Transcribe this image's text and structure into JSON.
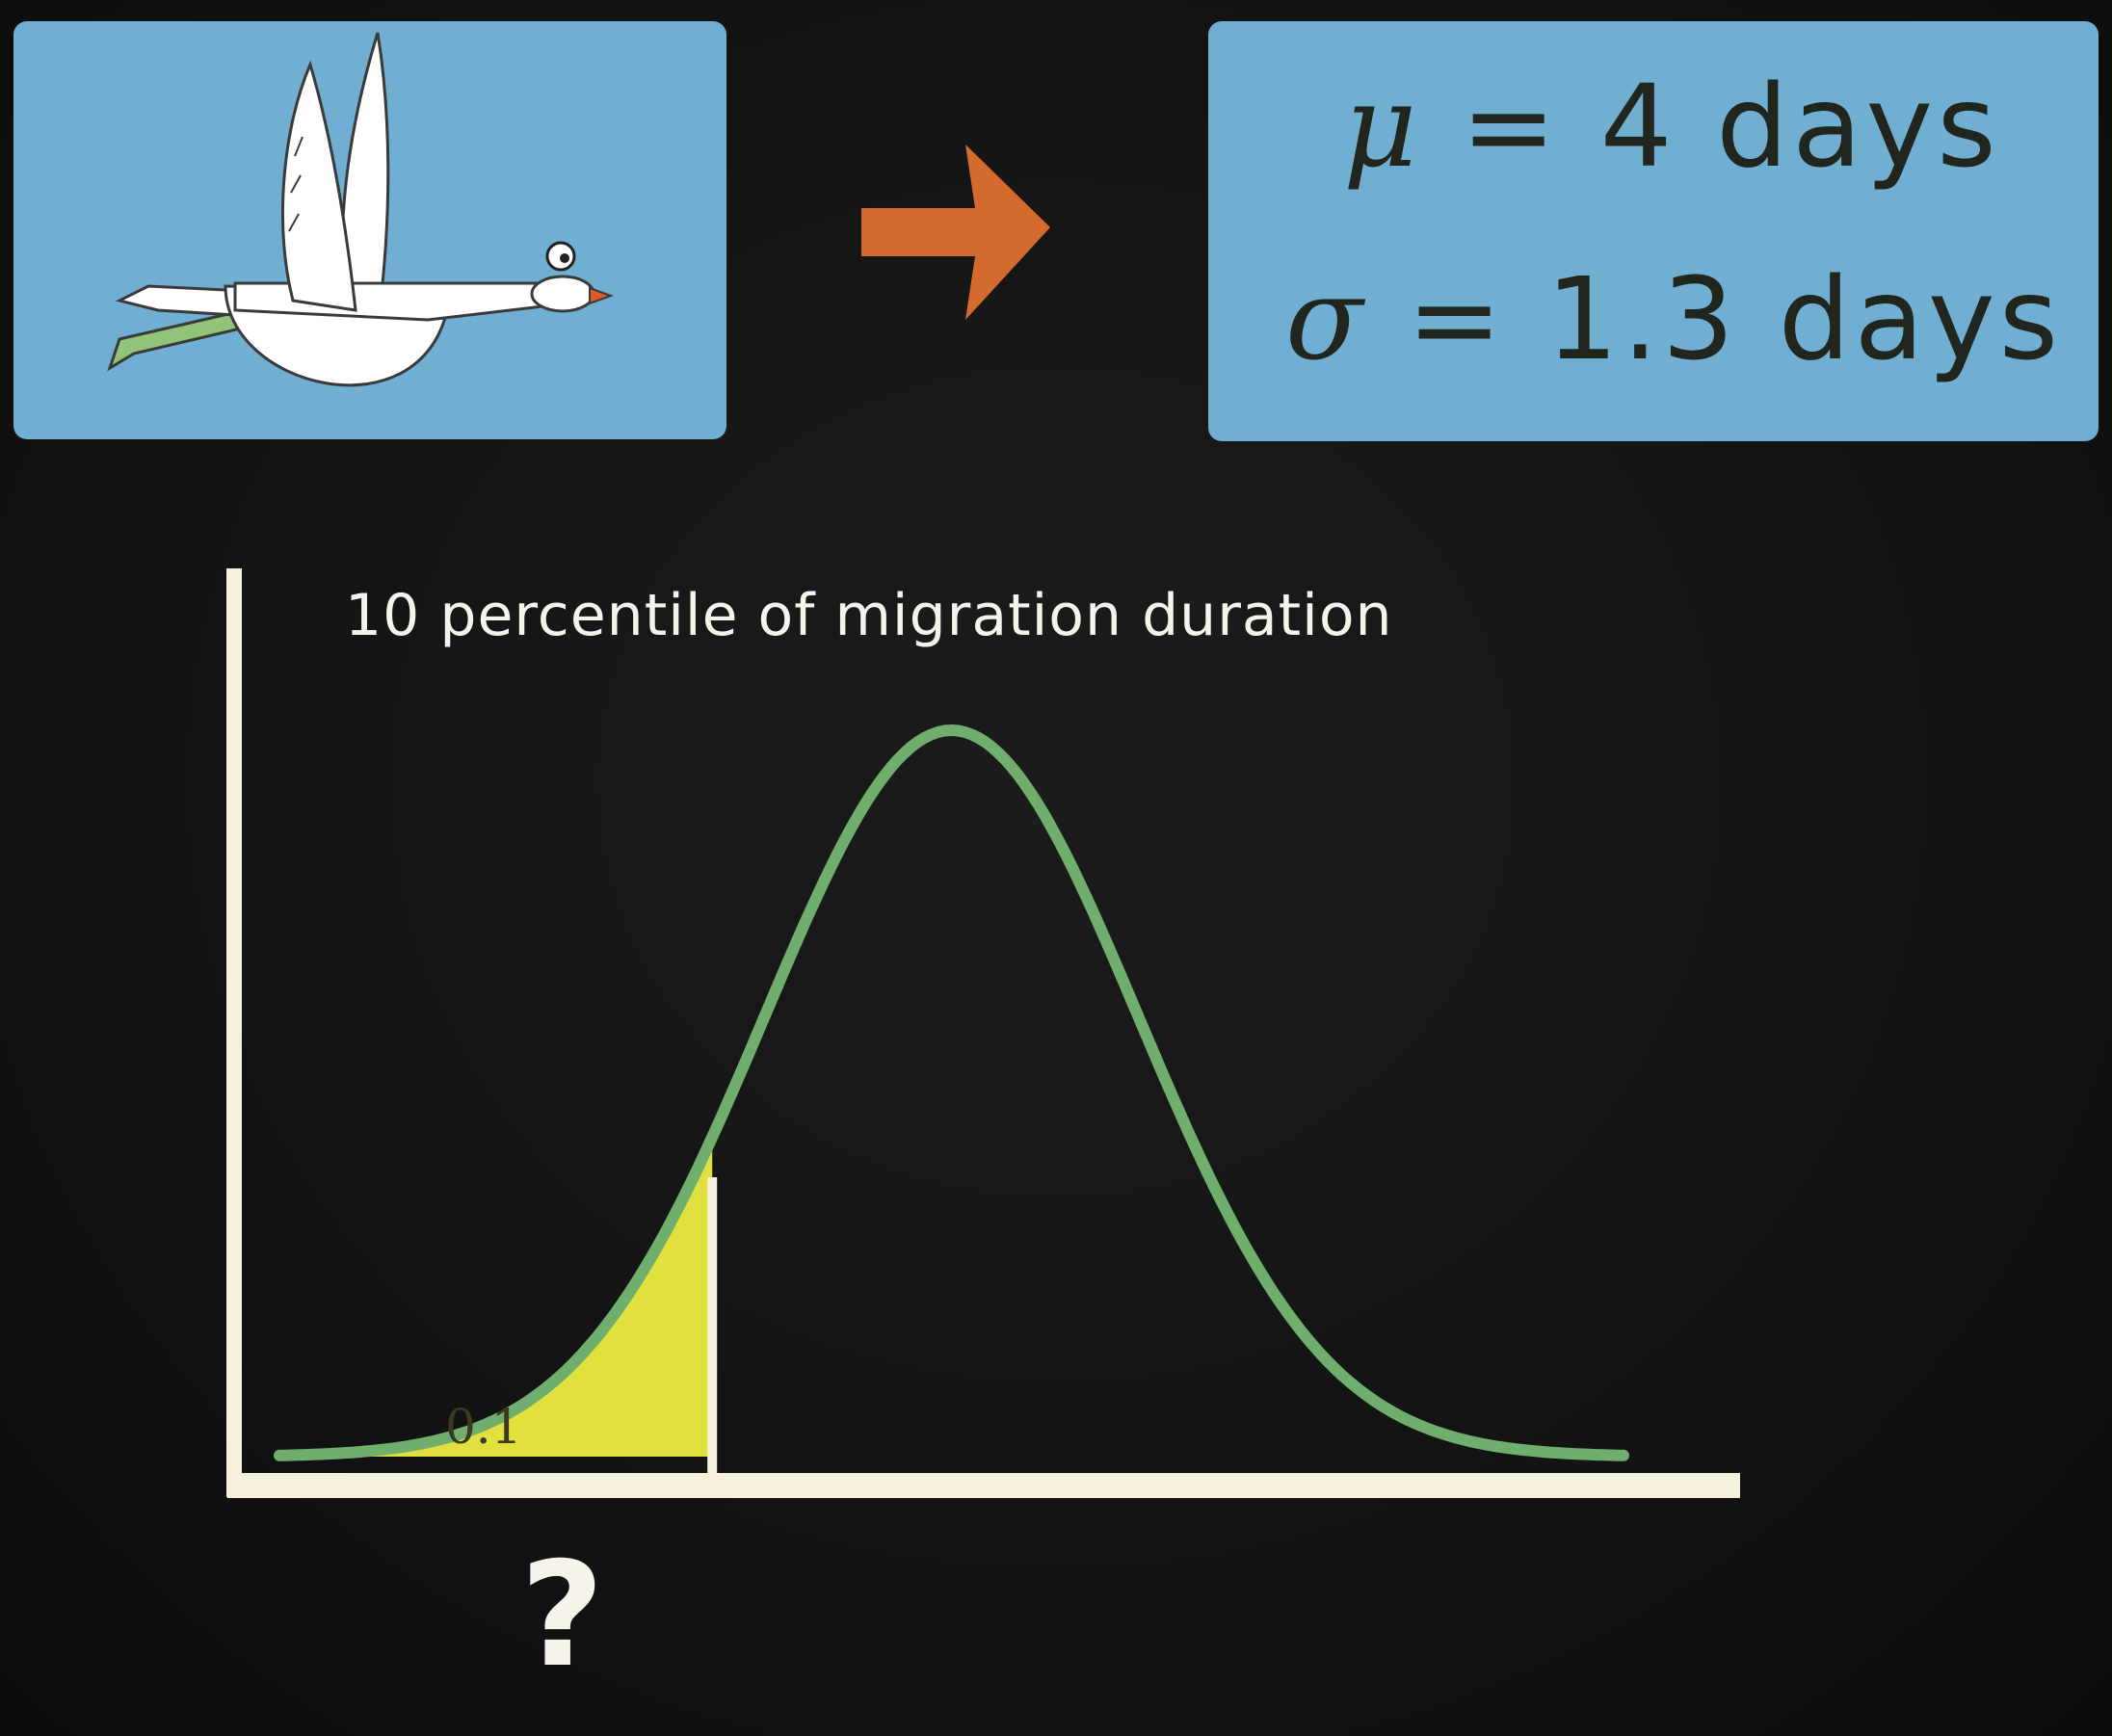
{
  "params": {
    "mu_symbol": "μ",
    "mu_text": "= 4 days",
    "sigma_symbol": "σ",
    "sigma_text": "= 1.3 days"
  },
  "chart_title": "10 percentile of migration duration",
  "area_label": "0.1",
  "unknown_marker": "?",
  "colors": {
    "panel": "#70aed2",
    "arrow": "#d46a2e",
    "curve": "#6fae6d",
    "shaded_area": "#e1e03f",
    "axis": "#f6f1dc",
    "background": "#121212"
  },
  "chart_data": {
    "type": "area",
    "distribution": "normal",
    "mean": 4,
    "sd": 1.3,
    "shaded_tail": "left",
    "shaded_probability": 0.1,
    "cutoff_label": "?"
  }
}
